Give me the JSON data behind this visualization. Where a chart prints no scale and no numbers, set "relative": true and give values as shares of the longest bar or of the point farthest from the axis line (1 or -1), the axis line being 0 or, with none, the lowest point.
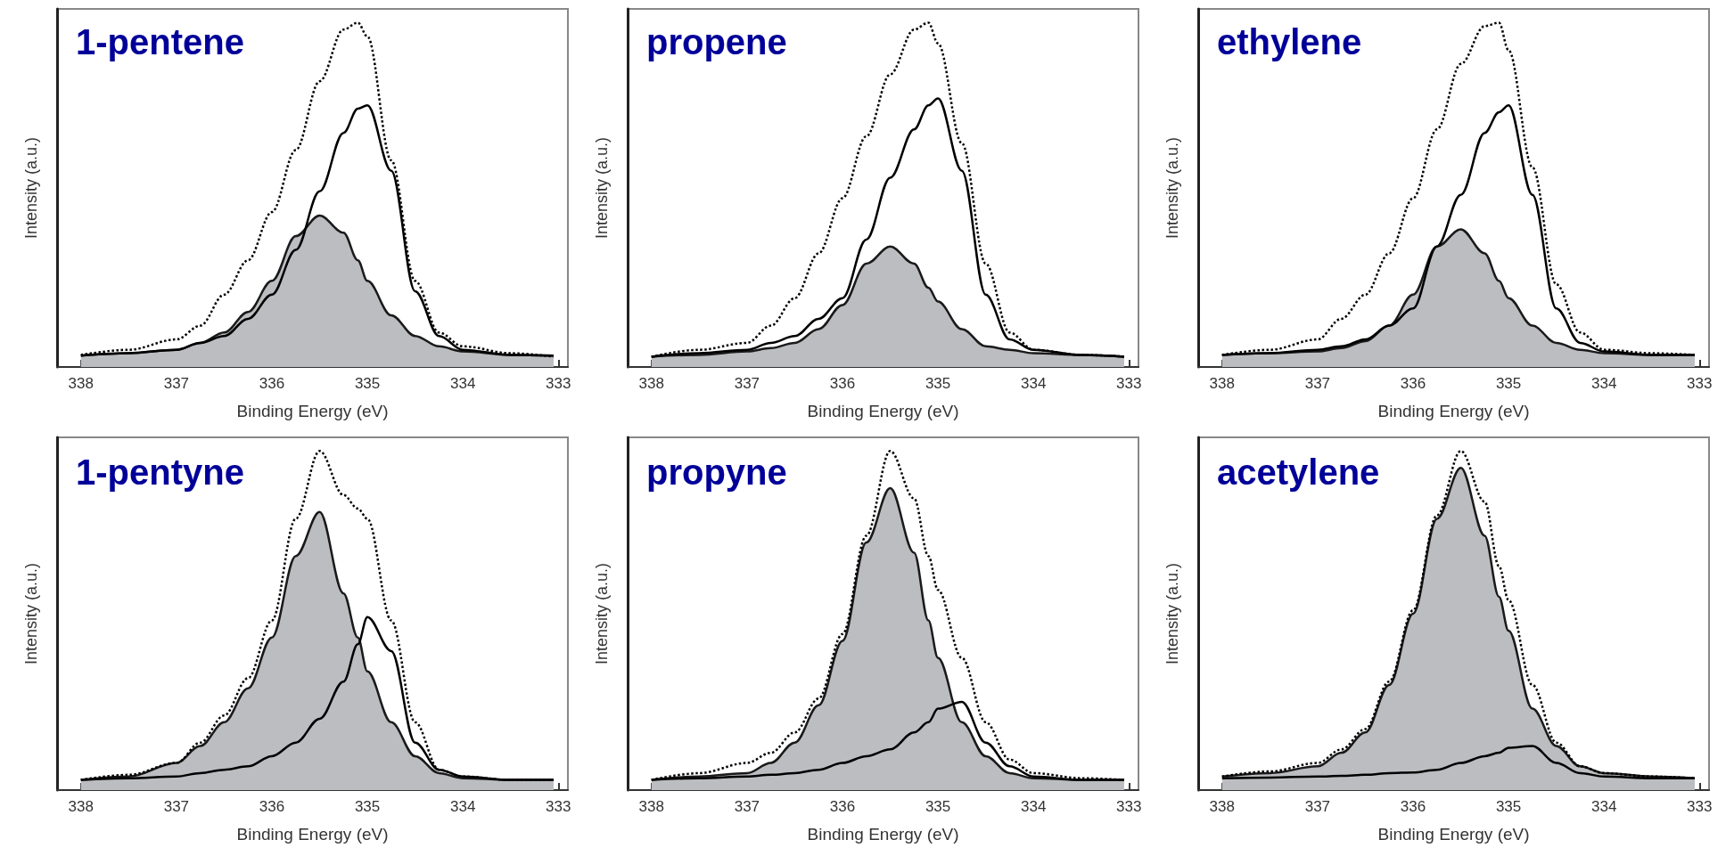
{
  "chart_data": [
    {
      "type": "line",
      "title": "1-pentene",
      "xlabel": "Binding Energy (eV)",
      "ylabel": "Intensity (a.u.)",
      "relative": true,
      "tick_labels": "x",
      "xlim": [
        338.25,
        332.9
      ],
      "xticks": [
        338,
        337,
        336,
        335,
        334,
        333
      ],
      "x": [
        338,
        337.5,
        337,
        336.75,
        336.5,
        336.25,
        336,
        335.75,
        335.5,
        335.25,
        335.1,
        335,
        334.75,
        334.5,
        334.25,
        334,
        333.5,
        333.05
      ],
      "series": [
        {
          "color": "#000000",
          "line_style": "dotted",
          "values": [
            0.035,
            0.05,
            0.08,
            0.12,
            0.21,
            0.31,
            0.45,
            0.63,
            0.83,
            0.98,
            1.0,
            0.96,
            0.6,
            0.25,
            0.1,
            0.06,
            0.04,
            0.03
          ]
        },
        {
          "type": "area",
          "color": "#bcbdc1",
          "values": [
            0.033,
            0.04,
            0.05,
            0.07,
            0.1,
            0.16,
            0.25,
            0.38,
            0.44,
            0.39,
            0.31,
            0.25,
            0.15,
            0.09,
            0.06,
            0.045,
            0.035,
            0.033
          ]
        },
        {
          "color": "#000000",
          "values": [
            0.033,
            0.04,
            0.05,
            0.07,
            0.09,
            0.14,
            0.21,
            0.34,
            0.51,
            0.68,
            0.75,
            0.76,
            0.57,
            0.22,
            0.09,
            0.05,
            0.035,
            0.033
          ]
        }
      ]
    },
    {
      "type": "line",
      "title": "propene",
      "xlabel": "Binding Energy (eV)",
      "ylabel": "Intensity (a.u.)",
      "relative": true,
      "tick_labels": "x",
      "xlim": [
        338.25,
        332.9
      ],
      "xticks": [
        338,
        337,
        336,
        335,
        334,
        333
      ],
      "x": [
        338,
        337.5,
        337,
        336.75,
        336.5,
        336.25,
        336,
        335.75,
        335.5,
        335.25,
        335.1,
        335,
        334.75,
        334.5,
        334.25,
        334,
        333.5,
        333.05
      ],
      "series": [
        {
          "color": "#000000",
          "line_style": "dotted",
          "values": [
            0.03,
            0.05,
            0.07,
            0.12,
            0.2,
            0.33,
            0.49,
            0.67,
            0.85,
            0.98,
            1.0,
            0.94,
            0.65,
            0.3,
            0.1,
            0.05,
            0.035,
            0.03
          ]
        },
        {
          "type": "area",
          "color": "#bcbdc1",
          "values": [
            0.03,
            0.035,
            0.045,
            0.055,
            0.07,
            0.11,
            0.18,
            0.3,
            0.35,
            0.3,
            0.23,
            0.19,
            0.11,
            0.06,
            0.05,
            0.04,
            0.035,
            0.03
          ]
        },
        {
          "color": "#000000",
          "values": [
            0.03,
            0.04,
            0.05,
            0.07,
            0.09,
            0.14,
            0.2,
            0.37,
            0.55,
            0.69,
            0.76,
            0.78,
            0.57,
            0.21,
            0.08,
            0.05,
            0.035,
            0.03
          ]
        }
      ]
    },
    {
      "type": "line",
      "title": "ethylene",
      "xlabel": "Binding Energy (eV)",
      "ylabel": "Intensity (a.u.)",
      "relative": true,
      "tick_labels": "x",
      "xlim": [
        338.25,
        332.9
      ],
      "xticks": [
        338,
        337,
        336,
        335,
        334,
        333
      ],
      "x": [
        338,
        337.5,
        337,
        336.75,
        336.5,
        336.25,
        336,
        335.75,
        335.5,
        335.25,
        335.1,
        335,
        334.75,
        334.5,
        334.25,
        334,
        333.5,
        333.05
      ],
      "series": [
        {
          "color": "#000000",
          "line_style": "dotted",
          "values": [
            0.035,
            0.05,
            0.08,
            0.14,
            0.21,
            0.33,
            0.49,
            0.69,
            0.88,
            0.99,
            1.0,
            0.92,
            0.58,
            0.24,
            0.1,
            0.05,
            0.04,
            0.035
          ]
        },
        {
          "type": "area",
          "color": "#bcbdc1",
          "values": [
            0.035,
            0.04,
            0.045,
            0.055,
            0.075,
            0.12,
            0.21,
            0.35,
            0.4,
            0.33,
            0.25,
            0.2,
            0.12,
            0.07,
            0.05,
            0.04,
            0.035,
            0.035
          ]
        },
        {
          "color": "#000000",
          "values": [
            0.035,
            0.04,
            0.05,
            0.06,
            0.08,
            0.12,
            0.17,
            0.35,
            0.5,
            0.68,
            0.74,
            0.76,
            0.5,
            0.17,
            0.07,
            0.045,
            0.035,
            0.035
          ]
        }
      ]
    },
    {
      "type": "line",
      "title": "1-pentyne",
      "xlabel": "Binding Energy (eV)",
      "ylabel": "Intensity (a.u.)",
      "relative": true,
      "tick_labels": "x",
      "xlim": [
        338.25,
        332.9
      ],
      "xticks": [
        338,
        337,
        336,
        335,
        334,
        333
      ],
      "x": [
        338,
        337.5,
        337,
        336.75,
        336.5,
        336.25,
        336,
        335.75,
        335.5,
        335.25,
        335.1,
        335,
        334.75,
        334.5,
        334.25,
        334,
        333.5,
        333.05
      ],
      "series": [
        {
          "color": "#000000",
          "line_style": "dotted",
          "values": [
            0.03,
            0.045,
            0.08,
            0.14,
            0.22,
            0.33,
            0.5,
            0.8,
            1.0,
            0.87,
            0.83,
            0.8,
            0.5,
            0.2,
            0.06,
            0.04,
            0.03,
            0.03
          ]
        },
        {
          "type": "area",
          "color": "#bcbdc1",
          "values": [
            0.03,
            0.04,
            0.08,
            0.13,
            0.2,
            0.3,
            0.45,
            0.69,
            0.82,
            0.58,
            0.45,
            0.35,
            0.2,
            0.1,
            0.05,
            0.035,
            0.03,
            0.03
          ]
        },
        {
          "color": "#000000",
          "values": [
            0.03,
            0.035,
            0.04,
            0.05,
            0.06,
            0.07,
            0.1,
            0.14,
            0.21,
            0.32,
            0.43,
            0.51,
            0.41,
            0.14,
            0.06,
            0.04,
            0.03,
            0.03
          ]
        }
      ]
    },
    {
      "type": "line",
      "title": "propyne",
      "xlabel": "Binding Energy (eV)",
      "ylabel": "Intensity (a.u.)",
      "relative": true,
      "tick_labels": "x",
      "xlim": [
        338.25,
        332.9
      ],
      "xticks": [
        338,
        337,
        336,
        335,
        334,
        333
      ],
      "x": [
        338,
        337.5,
        337,
        336.75,
        336.5,
        336.25,
        336,
        335.75,
        335.5,
        335.25,
        335.1,
        335,
        334.75,
        334.5,
        334.25,
        334,
        333.5,
        333.05
      ],
      "series": [
        {
          "color": "#000000",
          "line_style": "dotted",
          "values": [
            0.03,
            0.05,
            0.08,
            0.11,
            0.17,
            0.27,
            0.46,
            0.75,
            1.0,
            0.86,
            0.69,
            0.59,
            0.39,
            0.2,
            0.09,
            0.05,
            0.035,
            0.03
          ]
        },
        {
          "type": "area",
          "color": "#bcbdc1",
          "values": [
            0.03,
            0.04,
            0.05,
            0.08,
            0.14,
            0.25,
            0.44,
            0.73,
            0.89,
            0.7,
            0.5,
            0.39,
            0.2,
            0.1,
            0.05,
            0.035,
            0.03,
            0.03
          ]
        },
        {
          "color": "#000000",
          "values": [
            0.03,
            0.035,
            0.04,
            0.045,
            0.05,
            0.06,
            0.08,
            0.1,
            0.12,
            0.17,
            0.2,
            0.24,
            0.26,
            0.14,
            0.07,
            0.04,
            0.03,
            0.03
          ]
        }
      ]
    },
    {
      "type": "line",
      "title": "acetylene",
      "xlabel": "Binding Energy (eV)",
      "ylabel": "Intensity (a.u.)",
      "relative": true,
      "tick_labels": "x",
      "xlim": [
        338.25,
        332.9
      ],
      "xticks": [
        338,
        337,
        336,
        335,
        334,
        333
      ],
      "x": [
        338,
        337.5,
        337,
        336.75,
        336.5,
        336.25,
        336,
        335.75,
        335.5,
        335.25,
        335.1,
        335,
        334.75,
        334.5,
        334.25,
        334,
        333.5,
        333.05
      ],
      "series": [
        {
          "color": "#000000",
          "line_style": "dotted",
          "values": [
            0.04,
            0.055,
            0.08,
            0.12,
            0.18,
            0.32,
            0.53,
            0.81,
            1.0,
            0.85,
            0.66,
            0.56,
            0.31,
            0.14,
            0.07,
            0.05,
            0.04,
            0.035
          ]
        },
        {
          "type": "area",
          "color": "#bcbdc1",
          "values": [
            0.04,
            0.05,
            0.07,
            0.11,
            0.17,
            0.31,
            0.52,
            0.8,
            0.95,
            0.75,
            0.57,
            0.47,
            0.24,
            0.13,
            0.07,
            0.05,
            0.04,
            0.035
          ]
        },
        {
          "color": "#000000",
          "values": [
            0.035,
            0.037,
            0.04,
            0.042,
            0.045,
            0.05,
            0.052,
            0.06,
            0.08,
            0.1,
            0.11,
            0.125,
            0.13,
            0.08,
            0.05,
            0.04,
            0.035,
            0.035
          ]
        }
      ]
    }
  ]
}
